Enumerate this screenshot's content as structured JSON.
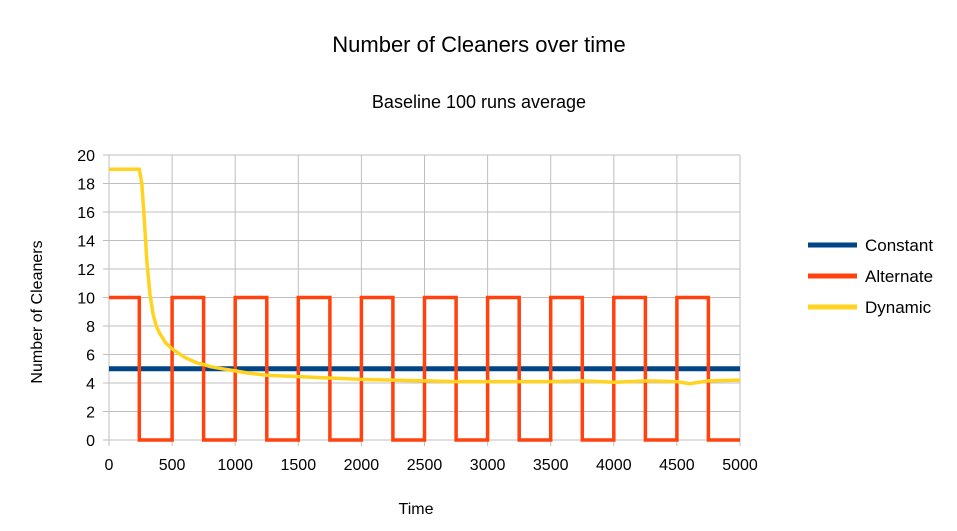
{
  "chart_data": {
    "type": "line",
    "title": "Number of Cleaners over time",
    "subtitle": "Baseline 100 runs average",
    "xlabel": "Time",
    "ylabel": "Number of Cleaners",
    "xlim": [
      0,
      5000
    ],
    "ylim": [
      0,
      20
    ],
    "x_ticks": [
      "0",
      "500",
      "1000",
      "1500",
      "2000",
      "2500",
      "3000",
      "3500",
      "4000",
      "4500",
      "5000"
    ],
    "y_ticks": [
      "0",
      "2",
      "4",
      "6",
      "8",
      "10",
      "12",
      "14",
      "16",
      "18",
      "20"
    ],
    "grid": true,
    "legend_position": "right",
    "series": [
      {
        "name": "Constant",
        "color": "#004586",
        "x": [
          0,
          5000
        ],
        "y": [
          5,
          5
        ]
      },
      {
        "name": "Alternate",
        "color": "#ff420e",
        "x": [
          0,
          240,
          240,
          500,
          500,
          750,
          750,
          1000,
          1000,
          1250,
          1250,
          1500,
          1500,
          1750,
          1750,
          2000,
          2000,
          2250,
          2250,
          2500,
          2500,
          2750,
          2750,
          3000,
          3000,
          3250,
          3250,
          3500,
          3500,
          3750,
          3750,
          4000,
          4000,
          4250,
          4250,
          4500,
          4500,
          4750,
          4750,
          5000
        ],
        "y": [
          10,
          10,
          0,
          0,
          10,
          10,
          0,
          0,
          10,
          10,
          0,
          0,
          10,
          10,
          0,
          0,
          10,
          10,
          0,
          0,
          10,
          10,
          0,
          0,
          10,
          10,
          0,
          0,
          10,
          10,
          0,
          0,
          10,
          10,
          0,
          0,
          10,
          10,
          0,
          0
        ]
      },
      {
        "name": "Dynamic",
        "color": "#ffd320",
        "x": [
          0,
          240,
          260,
          280,
          300,
          325,
          350,
          375,
          400,
          450,
          500,
          550,
          600,
          650,
          700,
          750,
          800,
          900,
          1000,
          1100,
          1250,
          1500,
          1750,
          2000,
          2250,
          2500,
          2750,
          3000,
          3250,
          3500,
          3750,
          4000,
          4250,
          4500,
          4600,
          4750,
          5000
        ],
        "y": [
          19,
          19,
          18,
          15.5,
          12.5,
          10.2,
          8.8,
          8,
          7.5,
          6.8,
          6.4,
          6.1,
          5.8,
          5.6,
          5.4,
          5.3,
          5.15,
          5,
          4.85,
          4.7,
          4.55,
          4.45,
          4.35,
          4.25,
          4.2,
          4.15,
          4.1,
          4.1,
          4.1,
          4.1,
          4.15,
          4.05,
          4.15,
          4.1,
          3.95,
          4.15,
          4.2
        ]
      }
    ]
  }
}
